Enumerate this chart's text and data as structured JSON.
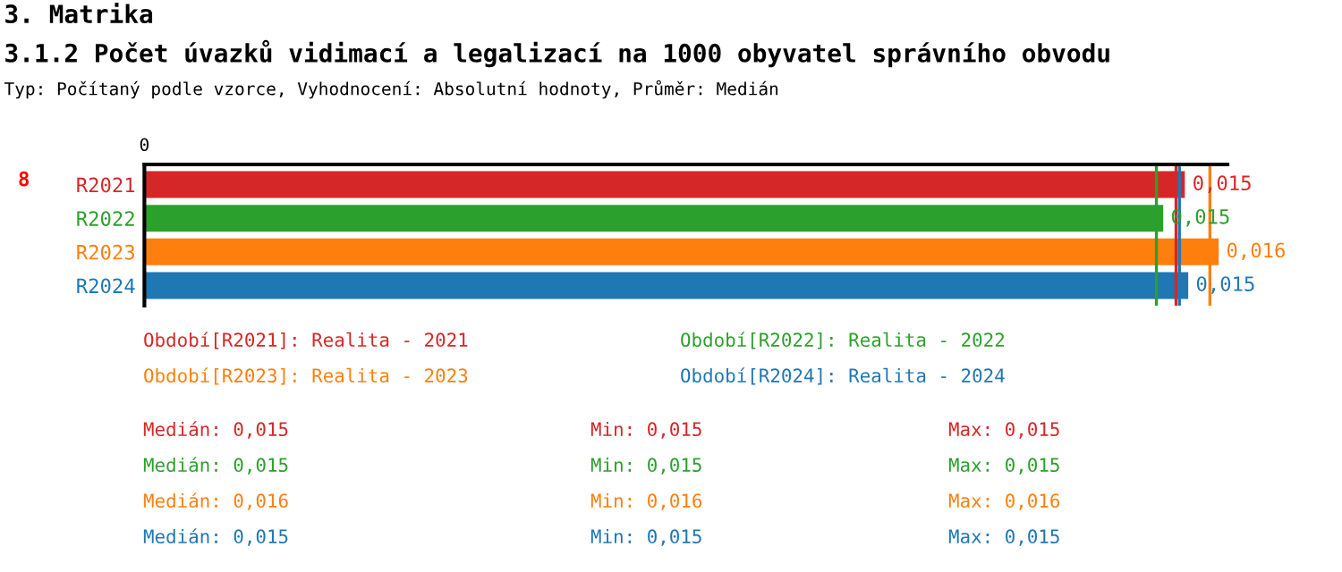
{
  "chart_data": {
    "type": "bar",
    "orientation": "horizontal",
    "title": "3. Matrika",
    "subtitle": "3.1.2 Počet úvazků vidimací a legalizací na 1000 obyvatel správního obvodu",
    "categories": [
      "R2021",
      "R2022",
      "R2023",
      "R2024"
    ],
    "values": [
      0.01537,
      0.01505,
      0.01587,
      0.01542
    ],
    "xlim": [
      0,
      0.016
    ],
    "value_labels": [
      "0,015",
      "0,015",
      "0,016",
      "0,015"
    ],
    "colors": [
      "#d62728",
      "#2ca02c",
      "#ff7f0e",
      "#1f77b4"
    ],
    "ref_lines": [
      {
        "axis": "x",
        "value": 0.01495,
        "color": "#2ca02c"
      },
      {
        "axis": "x",
        "value": 0.01524,
        "color": "#d62728"
      },
      {
        "axis": "x",
        "value": 0.01529,
        "color": "#1f77b4"
      },
      {
        "axis": "x",
        "value": 0.01574,
        "color": "#ff7f0e"
      }
    ],
    "grid": false,
    "legend": false,
    "annotations": [
      "Typ: Počítaný podle vzorce, Vyhodnocení: Absolutní hodnoty, Průměr: Medián",
      "8",
      "0",
      "Období[R2021]: Realita - 2021",
      "Období[R2022]: Realita - 2022",
      "Období[R2023]: Realita - 2023",
      "Období[R2024]: Realita - 2024",
      "Medián: 0,015",
      "Min: 0,015",
      "Max: 0,015",
      "Medián: 0,015",
      "Min: 0,015",
      "Max: 0,015",
      "Medián: 0,016",
      "Min: 0,016",
      "Max: 0,016",
      "Medián: 0,015",
      "Min: 0,015",
      "Max: 0,015"
    ]
  }
}
